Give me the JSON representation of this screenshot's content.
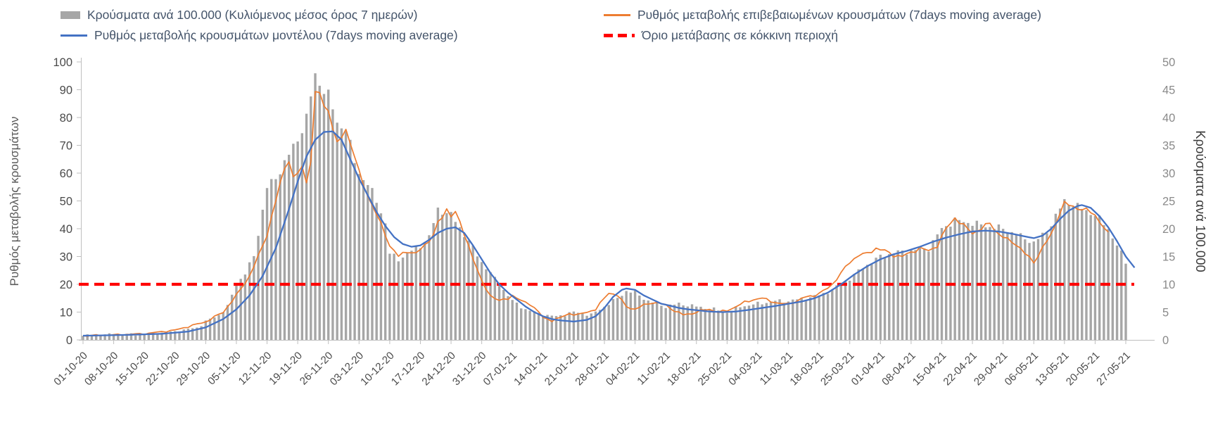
{
  "chart_data": {
    "type": "combo",
    "title": "",
    "legend_position": "top",
    "grid": false,
    "x_axis": {
      "start_date": "01-10-20",
      "end_date": "27-05-21",
      "tick_interval_days": 7,
      "tick_labels": [
        "01-10-20",
        "08-10-20",
        "15-10-20",
        "22-10-20",
        "29-10-20",
        "05-11-20",
        "12-11-20",
        "19-11-20",
        "26-11-20",
        "03-12-20",
        "10-12-20",
        "17-12-20",
        "24-12-20",
        "31-12-20",
        "07-01-21",
        "14-01-21",
        "21-01-21",
        "28-01-21",
        "04-02-21",
        "11-02-21",
        "18-02-21",
        "25-02-21",
        "04-03-21",
        "11-03-21",
        "18-03-21",
        "25-03-21",
        "01-04-21",
        "08-04-21",
        "15-04-21",
        "22-04-21",
        "29-04-21",
        "06-05-21",
        "13-05-21",
        "20-05-21",
        "27-05-21"
      ]
    },
    "y_axis_left": {
      "label": "Ρυθμός μεταβολής κρουσμάτων",
      "min": 0,
      "max": 100,
      "tick_step": 10
    },
    "y_axis_right": {
      "label": "Κρούσματα ανά 100.000",
      "min": 0,
      "max": 50,
      "tick_step": 5
    },
    "threshold": {
      "label": "Όριο μετάβασης σε κόκκινη περιοχή",
      "value_left_axis": 20,
      "value_right_axis": 10,
      "color": "#FF0000",
      "style": "dashed"
    },
    "series": [
      {
        "name": "Κρούσματα ανά 100.000 (Κυλιόμενος μέσος όρος 7 ημερών)",
        "type": "bar",
        "axis": "right",
        "color": "#A6A6A6",
        "points": [
          [
            0,
            0.75
          ],
          [
            7,
            1
          ],
          [
            14,
            1
          ],
          [
            21,
            1.5
          ],
          [
            26,
            2.2
          ],
          [
            28,
            3.3
          ],
          [
            31,
            4.5
          ],
          [
            33,
            6
          ],
          [
            35,
            10
          ],
          [
            37,
            12
          ],
          [
            39,
            15
          ],
          [
            42,
            27.5
          ],
          [
            44,
            29
          ],
          [
            46,
            32
          ],
          [
            49,
            36
          ],
          [
            51,
            40
          ],
          [
            53,
            47.5
          ],
          [
            55,
            45
          ],
          [
            56,
            44
          ],
          [
            58,
            39
          ],
          [
            60,
            38
          ],
          [
            62,
            32
          ],
          [
            63,
            30
          ],
          [
            65,
            28
          ],
          [
            67,
            25
          ],
          [
            69,
            21
          ],
          [
            70,
            15.5
          ],
          [
            72,
            14.5
          ],
          [
            75,
            16
          ],
          [
            77,
            17
          ],
          [
            79,
            18.5
          ],
          [
            81,
            23.5
          ],
          [
            84,
            22.5
          ],
          [
            87,
            19
          ],
          [
            89,
            16.5
          ],
          [
            91,
            14
          ],
          [
            94,
            11
          ],
          [
            96,
            9
          ],
          [
            98,
            7
          ],
          [
            101,
            5.5
          ],
          [
            105,
            4.5
          ],
          [
            108,
            4.2
          ],
          [
            112,
            5
          ],
          [
            116,
            4.5
          ],
          [
            119,
            6
          ],
          [
            122,
            7.5
          ],
          [
            124,
            8.8
          ],
          [
            126,
            8.5
          ],
          [
            129,
            7
          ],
          [
            133,
            6
          ],
          [
            136,
            6.5
          ],
          [
            140,
            6
          ],
          [
            144,
            5.5
          ],
          [
            147,
            5
          ],
          [
            150,
            6
          ],
          [
            154,
            6.5
          ],
          [
            158,
            7
          ],
          [
            161,
            7
          ],
          [
            165,
            7.5
          ],
          [
            168,
            8
          ],
          [
            171,
            9
          ],
          [
            175,
            11
          ],
          [
            178,
            13
          ],
          [
            182,
            15
          ],
          [
            186,
            15.8
          ],
          [
            189,
            16
          ],
          [
            193,
            16.5
          ],
          [
            196,
            20
          ],
          [
            199,
            21.5
          ],
          [
            203,
            21
          ],
          [
            206,
            20.5
          ],
          [
            210,
            20
          ],
          [
            213,
            19
          ],
          [
            217,
            17.5
          ],
          [
            220,
            19.5
          ],
          [
            224,
            25
          ],
          [
            227,
            24
          ],
          [
            231,
            22.5
          ],
          [
            234,
            20
          ],
          [
            236,
            17
          ],
          [
            238,
            14
          ]
        ]
      },
      {
        "name": "Ρυθμός μεταβολής επιβεβαιωμένων κρουσμάτων (7days moving average)",
        "type": "line",
        "axis": "left",
        "color": "#ED7D31",
        "points": [
          [
            0,
            1.5
          ],
          [
            7,
            1.8
          ],
          [
            14,
            2.2
          ],
          [
            21,
            3.5
          ],
          [
            28,
            6.5
          ],
          [
            32,
            10
          ],
          [
            35,
            16
          ],
          [
            38,
            23
          ],
          [
            40,
            30
          ],
          [
            42,
            38
          ],
          [
            44,
            50
          ],
          [
            46,
            62
          ],
          [
            47,
            65
          ],
          [
            48,
            58
          ],
          [
            50,
            62
          ],
          [
            51,
            57
          ],
          [
            52,
            65
          ],
          [
            53,
            88
          ],
          [
            54,
            89
          ],
          [
            55,
            84
          ],
          [
            56,
            83
          ],
          [
            58,
            70
          ],
          [
            60,
            76
          ],
          [
            62,
            66
          ],
          [
            63,
            60
          ],
          [
            65,
            52
          ],
          [
            67,
            45
          ],
          [
            69,
            38
          ],
          [
            70,
            34
          ],
          [
            72,
            30
          ],
          [
            74,
            32
          ],
          [
            76,
            31
          ],
          [
            78,
            34
          ],
          [
            80,
            38
          ],
          [
            81,
            42
          ],
          [
            82,
            44
          ],
          [
            83,
            47
          ],
          [
            84,
            45
          ],
          [
            85,
            46
          ],
          [
            86,
            42
          ],
          [
            88,
            34
          ],
          [
            90,
            25
          ],
          [
            91,
            21
          ],
          [
            93,
            16
          ],
          [
            95,
            14
          ],
          [
            97,
            15
          ],
          [
            98,
            16
          ],
          [
            100,
            14
          ],
          [
            102,
            13
          ],
          [
            104,
            10
          ],
          [
            105,
            8
          ],
          [
            107,
            7
          ],
          [
            109,
            8
          ],
          [
            111,
            9.5
          ],
          [
            113,
            9
          ],
          [
            115,
            10
          ],
          [
            117,
            11
          ],
          [
            119,
            15
          ],
          [
            120,
            17
          ],
          [
            122,
            16
          ],
          [
            124,
            12
          ],
          [
            126,
            11
          ],
          [
            128,
            12.5
          ],
          [
            130,
            13.5
          ],
          [
            132,
            13
          ],
          [
            133,
            12.5
          ],
          [
            135,
            10.5
          ],
          [
            137,
            9
          ],
          [
            139,
            9.5
          ],
          [
            141,
            10.5
          ],
          [
            143,
            11
          ],
          [
            145,
            10
          ],
          [
            147,
            10.5
          ],
          [
            149,
            12
          ],
          [
            151,
            13.5
          ],
          [
            153,
            14.5
          ],
          [
            155,
            15
          ],
          [
            157,
            14
          ],
          [
            159,
            13
          ],
          [
            161,
            13
          ],
          [
            163,
            14
          ],
          [
            165,
            15.5
          ],
          [
            167,
            16
          ],
          [
            169,
            17.5
          ],
          [
            171,
            20
          ],
          [
            173,
            24
          ],
          [
            175,
            28
          ],
          [
            177,
            30.5
          ],
          [
            179,
            31
          ],
          [
            181,
            33
          ],
          [
            183,
            32
          ],
          [
            185,
            30.5
          ],
          [
            187,
            30
          ],
          [
            189,
            31.5
          ],
          [
            191,
            33
          ],
          [
            193,
            32
          ],
          [
            195,
            34
          ],
          [
            197,
            40
          ],
          [
            199,
            44
          ],
          [
            201,
            41
          ],
          [
            203,
            38.5
          ],
          [
            205,
            40
          ],
          [
            207,
            42
          ],
          [
            209,
            38
          ],
          [
            211,
            36
          ],
          [
            213,
            34.5
          ],
          [
            215,
            31
          ],
          [
            217,
            28
          ],
          [
            219,
            33
          ],
          [
            221,
            38
          ],
          [
            223,
            46
          ],
          [
            224,
            49
          ],
          [
            226,
            48
          ],
          [
            228,
            47
          ],
          [
            230,
            46
          ],
          [
            231,
            45
          ],
          [
            234,
            38
          ]
        ]
      },
      {
        "name": "Ρυθμός μεταβολής κρουσμάτων μοντέλου (7days moving average)",
        "type": "line",
        "axis": "left",
        "color": "#4472C4",
        "points": [
          [
            0,
            1.5
          ],
          [
            10,
            1.8
          ],
          [
            18,
            2.2
          ],
          [
            24,
            3
          ],
          [
            28,
            4.5
          ],
          [
            32,
            7.5
          ],
          [
            35,
            11
          ],
          [
            38,
            16
          ],
          [
            41,
            23
          ],
          [
            44,
            33
          ],
          [
            47,
            47
          ],
          [
            49,
            57
          ],
          [
            51,
            66
          ],
          [
            53,
            72
          ],
          [
            55,
            74.8
          ],
          [
            57,
            75
          ],
          [
            59,
            72
          ],
          [
            61,
            65
          ],
          [
            63,
            58
          ],
          [
            65,
            52
          ],
          [
            67,
            46
          ],
          [
            69,
            41
          ],
          [
            71,
            37
          ],
          [
            73,
            34.5
          ],
          [
            75,
            33.5
          ],
          [
            77,
            34
          ],
          [
            79,
            36
          ],
          [
            81,
            38.5
          ],
          [
            83,
            40
          ],
          [
            85,
            40.5
          ],
          [
            87,
            38.5
          ],
          [
            89,
            34
          ],
          [
            91,
            29
          ],
          [
            93,
            24
          ],
          [
            95,
            20
          ],
          [
            97,
            17
          ],
          [
            99,
            14.5
          ],
          [
            101,
            12
          ],
          [
            103,
            10
          ],
          [
            105,
            8.5
          ],
          [
            107,
            7.5
          ],
          [
            109,
            7
          ],
          [
            112,
            6.6
          ],
          [
            115,
            7.2
          ],
          [
            117,
            8.5
          ],
          [
            119,
            11.5
          ],
          [
            121,
            15.5
          ],
          [
            123,
            18
          ],
          [
            124,
            18.5
          ],
          [
            126,
            18
          ],
          [
            128,
            16
          ],
          [
            130,
            14.5
          ],
          [
            132,
            13
          ],
          [
            134,
            12.3
          ],
          [
            136,
            11.5
          ],
          [
            138,
            11
          ],
          [
            140,
            10.7
          ],
          [
            143,
            10.2
          ],
          [
            146,
            10
          ],
          [
            149,
            10.2
          ],
          [
            152,
            10.8
          ],
          [
            155,
            11.5
          ],
          [
            158,
            12.2
          ],
          [
            161,
            13
          ],
          [
            164,
            13.8
          ],
          [
            167,
            15
          ],
          [
            170,
            17
          ],
          [
            173,
            20
          ],
          [
            176,
            23.5
          ],
          [
            179,
            26.5
          ],
          [
            182,
            29
          ],
          [
            185,
            30.8
          ],
          [
            188,
            32
          ],
          [
            191,
            33.5
          ],
          [
            194,
            35.3
          ],
          [
            197,
            36.8
          ],
          [
            200,
            38
          ],
          [
            203,
            39
          ],
          [
            206,
            39.3
          ],
          [
            209,
            39
          ],
          [
            212,
            38.2
          ],
          [
            215,
            37.2
          ],
          [
            217,
            36.6
          ],
          [
            219,
            37.5
          ],
          [
            221,
            40
          ],
          [
            223,
            43.5
          ],
          [
            225,
            46.5
          ],
          [
            227,
            48.2
          ],
          [
            228,
            48.5
          ],
          [
            230,
            47.5
          ],
          [
            232,
            44.5
          ],
          [
            234,
            40.5
          ],
          [
            236,
            35.5
          ],
          [
            238,
            30
          ],
          [
            240,
            26
          ]
        ]
      }
    ]
  }
}
